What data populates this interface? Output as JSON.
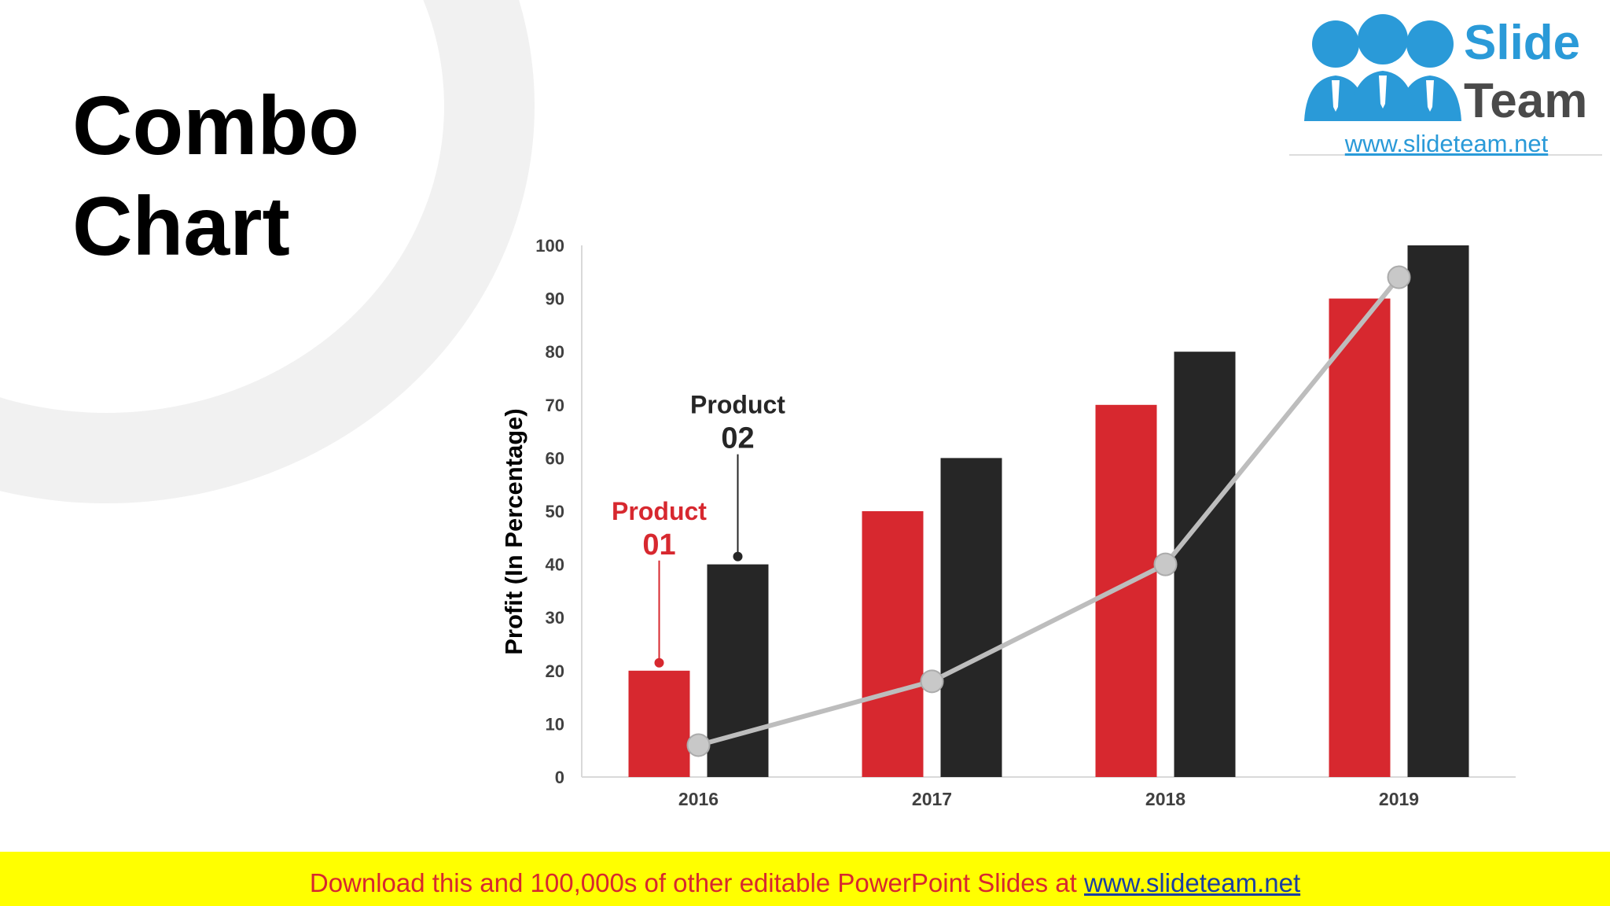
{
  "slide": {
    "title_line1": "Combo",
    "title_line2": "Chart"
  },
  "logo": {
    "text_line1": "Slide",
    "text_line2": "Team",
    "url": "www.slideteam.net"
  },
  "banner": {
    "text": "Download this and 100,000s of other editable PowerPoint Slides at ",
    "link": "www.slideteam.net"
  },
  "colors": {
    "product_01": "#d7282f",
    "product_02": "#262626",
    "trend_line": "#bdbdbd",
    "logo_blue": "#2a9ad8",
    "banner": "#ffff00"
  },
  "chart_data": {
    "type": "bar",
    "categories": [
      "2016",
      "2017",
      "2018",
      "2019"
    ],
    "series": [
      {
        "name": "Product 01",
        "values": [
          20,
          50,
          70,
          90
        ]
      },
      {
        "name": "Product 02",
        "values": [
          40,
          60,
          80,
          100
        ]
      }
    ],
    "trend_line": {
      "values": [
        6,
        18,
        40,
        94
      ]
    },
    "ylabel": "Profit (In Percentage)",
    "xlabel": "",
    "ylim": [
      0,
      100
    ],
    "y_ticks": [
      0,
      10,
      20,
      30,
      40,
      50,
      60,
      70,
      80,
      90,
      100
    ],
    "annotations": [
      {
        "series": 0,
        "category": 0,
        "line1": "Product",
        "line2": "01"
      },
      {
        "series": 1,
        "category": 0,
        "line1": "Product",
        "line2": "02"
      }
    ],
    "grid": false,
    "legend": "none"
  }
}
